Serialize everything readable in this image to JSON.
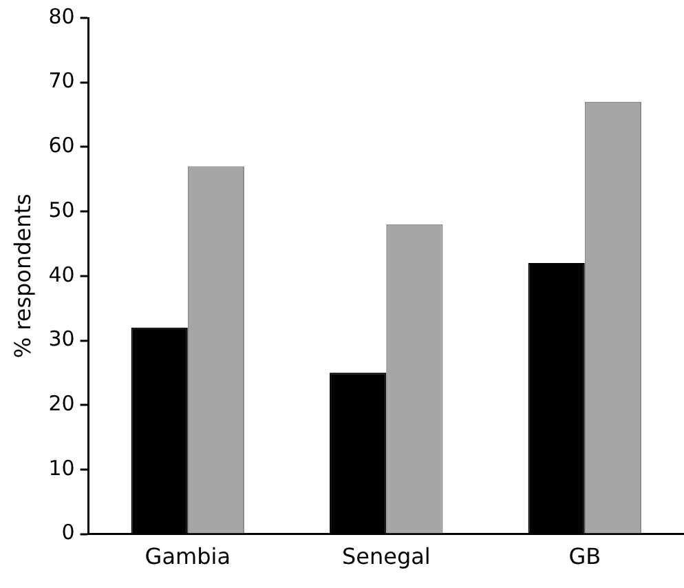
{
  "chart_data": {
    "type": "bar",
    "ylabel": "% respondents",
    "categories": [
      "Gambia",
      "Senegal",
      "GB"
    ],
    "series": [
      {
        "color": "#000000",
        "values": [
          32,
          25,
          42
        ]
      },
      {
        "color": "#a6a6a6",
        "values": [
          57,
          48,
          67
        ]
      }
    ],
    "ylim": [
      0,
      80
    ],
    "yticks": [
      0,
      10,
      20,
      30,
      40,
      50,
      60,
      70,
      80
    ],
    "grid": false,
    "legend": false
  }
}
